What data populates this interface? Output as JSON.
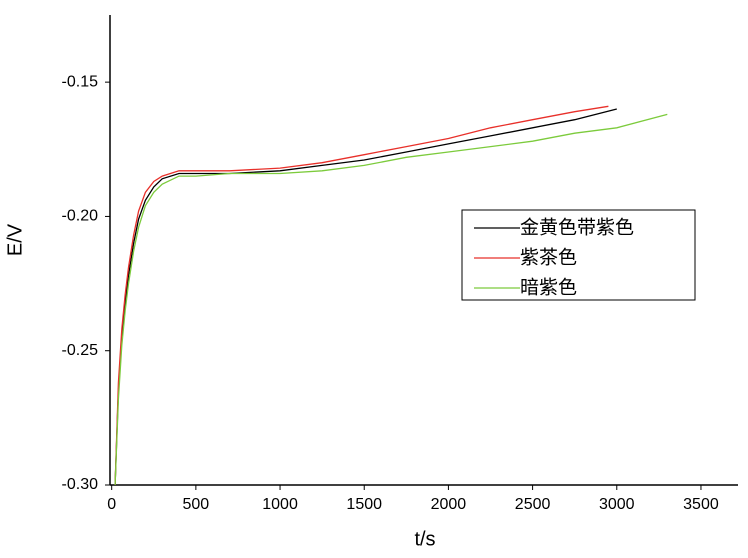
{
  "chart_data": {
    "type": "line",
    "xlabel": "t/s",
    "ylabel": "E/V",
    "xlim": [
      -10,
      3720
    ],
    "xticks": [
      0,
      500,
      1000,
      1500,
      2000,
      2500,
      3000,
      3500
    ],
    "ylim": [
      -0.3,
      -0.125
    ],
    "yticks": [
      {
        "value": -0.3,
        "label": "-0.30"
      },
      {
        "value": -0.25,
        "label": "-0.25"
      },
      {
        "value": -0.2,
        "label": "-0.20"
      },
      -0.15
    ],
    "legend": "right",
    "series": [
      {
        "name": "金黄色带紫色",
        "color": "#000000",
        "x": [
          20,
          40,
          60,
          80,
          100,
          130,
          160,
          200,
          250,
          300,
          400,
          500,
          700,
          1000,
          1250,
          1500,
          1750,
          2000,
          2250,
          2500,
          2750,
          3000
        ],
        "values": [
          -0.3,
          -0.265,
          -0.245,
          -0.232,
          -0.222,
          -0.21,
          -0.201,
          -0.194,
          -0.189,
          -0.186,
          -0.184,
          -0.184,
          -0.184,
          -0.183,
          -0.181,
          -0.179,
          -0.176,
          -0.173,
          -0.17,
          -0.167,
          -0.164,
          -0.16
        ]
      },
      {
        "name": "紫茶色",
        "color": "#e8302a",
        "x": [
          20,
          40,
          60,
          80,
          100,
          130,
          160,
          200,
          250,
          300,
          400,
          500,
          700,
          1000,
          1250,
          1500,
          1750,
          2000,
          2250,
          2500,
          2750,
          2950
        ],
        "values": [
          -0.3,
          -0.262,
          -0.242,
          -0.229,
          -0.219,
          -0.207,
          -0.198,
          -0.191,
          -0.187,
          -0.185,
          -0.183,
          -0.183,
          -0.183,
          -0.182,
          -0.18,
          -0.177,
          -0.174,
          -0.171,
          -0.167,
          -0.164,
          -0.161,
          -0.159
        ]
      },
      {
        "name": "暗紫色",
        "color": "#7ccb3c",
        "x": [
          20,
          40,
          60,
          80,
          100,
          130,
          160,
          200,
          250,
          300,
          400,
          500,
          700,
          1000,
          1250,
          1500,
          1750,
          2000,
          2250,
          2500,
          2750,
          3000,
          3300
        ],
        "values": [
          -0.3,
          -0.268,
          -0.248,
          -0.235,
          -0.225,
          -0.213,
          -0.204,
          -0.196,
          -0.191,
          -0.188,
          -0.185,
          -0.185,
          -0.184,
          -0.184,
          -0.183,
          -0.181,
          -0.178,
          -0.176,
          -0.174,
          -0.172,
          -0.169,
          -0.167,
          -0.162
        ]
      }
    ]
  }
}
